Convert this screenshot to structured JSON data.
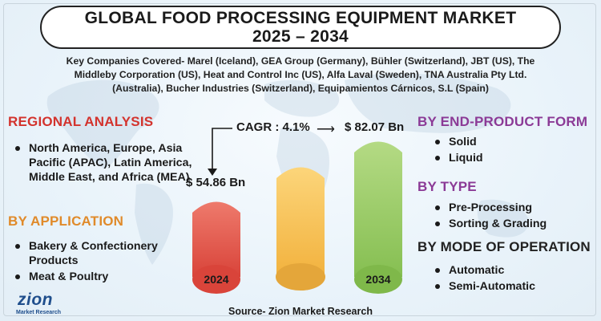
{
  "title": {
    "line1": "GLOBAL FOOD PROCESSING EQUIPMENT MARKET",
    "line2": "2025 – 2034"
  },
  "companies": {
    "line1": "Key Companies Covered- Marel (Iceland), GEA Group (Germany), Bühler (Switzerland), JBT (US), The",
    "line2": "Middleby Corporation (US), Heat and Control Inc (US), Alfa Laval (Sweden), TNA Australia Pty Ltd.",
    "line3": "(Australia), Bucher Industries (Switzerland), Equipamientos Cárnicos, S.L (Spain)"
  },
  "regional": {
    "heading": "REGIONAL ANALYSIS",
    "items": [
      "North America, Europe, Asia Pacific (APAC), Latin America, Middle East, and Africa (MEA)"
    ]
  },
  "application": {
    "heading": "BY APPLICATION",
    "items": [
      "Bakery & Confectionery Products",
      "Meat & Poultry"
    ]
  },
  "end_product": {
    "heading": "BY END-PRODUCT FORM",
    "items": [
      "Solid",
      "Liquid"
    ]
  },
  "type": {
    "heading": "BY TYPE",
    "items": [
      "Pre-Processing",
      "Sorting & Grading"
    ]
  },
  "mode": {
    "heading": "BY MODE OF OPERATION",
    "items": [
      "Automatic",
      "Semi-Automatic"
    ]
  },
  "market": {
    "cagr_label": "CAGR : 4.1%",
    "value_2024": "$ 54.86 Bn",
    "value_2034": "$ 82.07 Bn",
    "year_start": "2024",
    "year_end": "2034"
  },
  "colors": {
    "red": "#d3332d",
    "orange": "#e08a2a",
    "purple": "#8b3a96",
    "bar_red": "#ec6a5c",
    "bar_yellow": "#f9c75c",
    "bar_green": "#9ccc6a"
  },
  "source": "Source- Zion Market Research",
  "logo": {
    "name": "zion",
    "sub": "Market Research"
  }
}
